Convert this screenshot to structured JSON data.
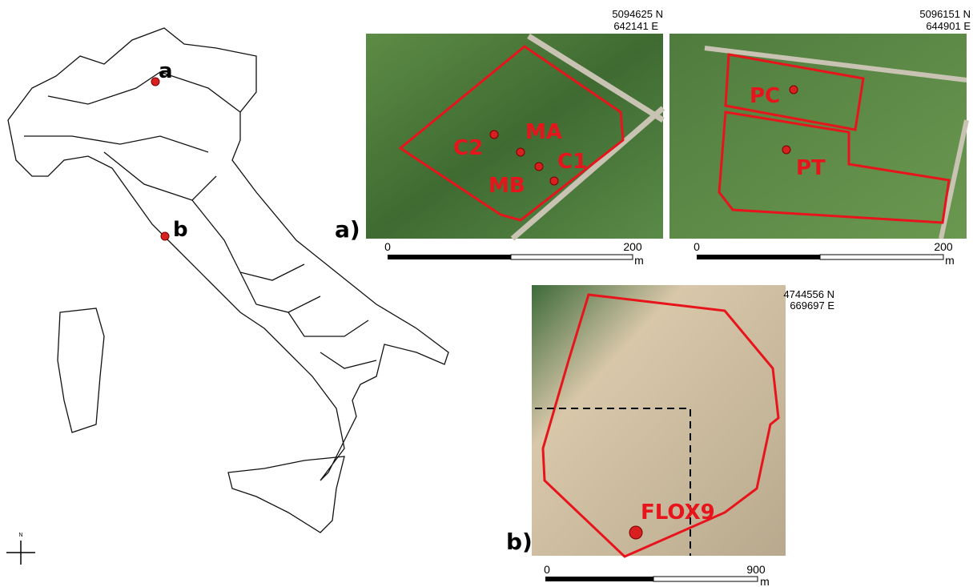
{
  "italy_map": {
    "sites": [
      "a",
      "b"
    ],
    "north_label": "N"
  },
  "panel_a": {
    "label": "a)",
    "maps": [
      {
        "coords": [
          "5094625 N",
          "642141 E"
        ],
        "points": [
          "C2",
          "MA",
          "C1",
          "MB"
        ],
        "scale": {
          "start": "0",
          "end": "200",
          "unit": "m"
        }
      },
      {
        "coords": [
          "5096151 N",
          "644901 E"
        ],
        "points": [
          "PC",
          "PT"
        ],
        "scale": {
          "start": "0",
          "end": "200",
          "unit": "m"
        }
      }
    ]
  },
  "panel_b": {
    "label": "b)",
    "coords": [
      "4744556 N",
      "669697 E"
    ],
    "points": [
      "FLOX9"
    ],
    "scale": {
      "start": "0",
      "end": "900",
      "unit": "m"
    }
  }
}
